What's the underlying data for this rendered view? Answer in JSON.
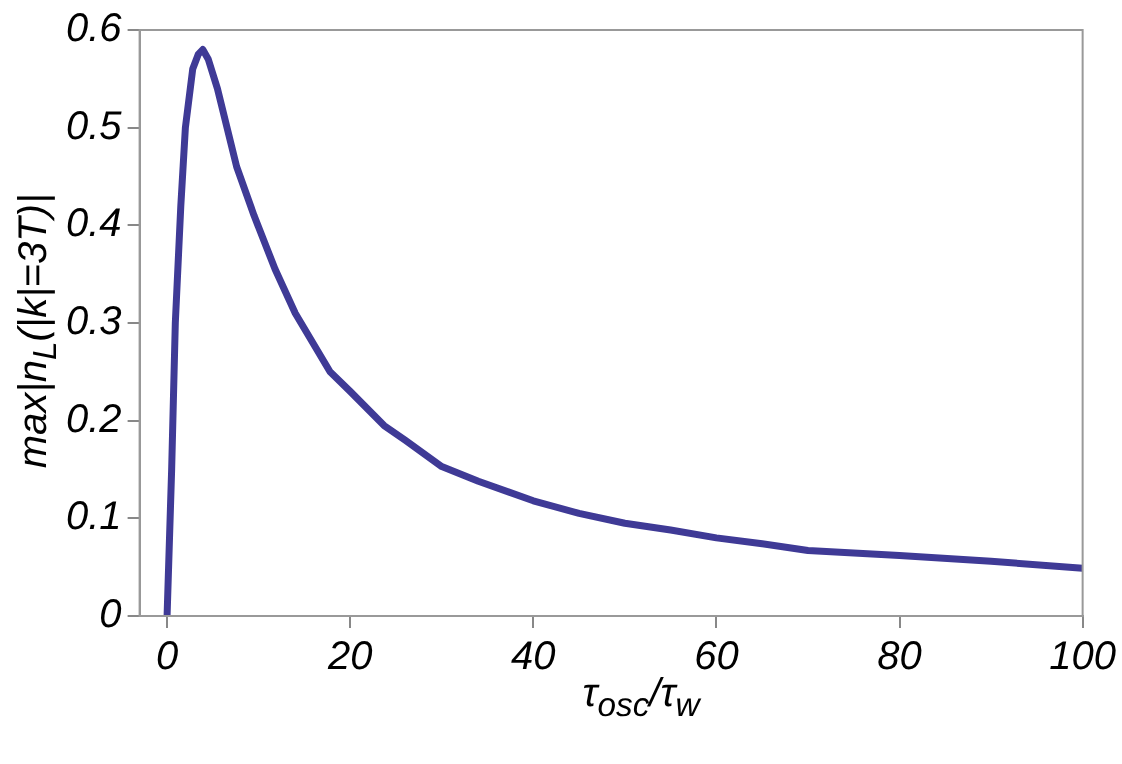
{
  "chart_data": {
    "type": "line",
    "xlabel": "τ$_{osc}$/τ$_{w}$",
    "ylabel": "max|n$_{L}$(|k|=3T)|",
    "series": [
      {
        "color": "#3f3a96",
        "x": [
          0,
          0.5,
          0.9,
          1.5,
          2,
          2.8,
          3.4,
          3.9,
          4.5,
          5.5,
          7.6,
          9.5,
          11.8,
          14,
          17.8,
          20,
          23.7,
          26,
          30,
          34,
          40,
          45,
          50,
          55,
          60,
          65,
          70,
          80,
          90,
          100
        ],
        "values": [
          0,
          0.15,
          0.3,
          0.42,
          0.5,
          0.56,
          0.575,
          0.58,
          0.57,
          0.54,
          0.46,
          0.41,
          0.355,
          0.31,
          0.25,
          0.23,
          0.195,
          0.18,
          0.153,
          0.138,
          0.118,
          0.105,
          0.095,
          0.088,
          0.08,
          0.074,
          0.067,
          0.062,
          0.056,
          0.049
        ]
      }
    ],
    "xlim": [
      -3,
      100
    ],
    "xticks": [
      0,
      20,
      40,
      60,
      80,
      100
    ],
    "ylim": [
      0,
      0.6
    ],
    "yticks": [
      0,
      0.1,
      0.2,
      0.3,
      0.4,
      0.5,
      0.6
    ],
    "grid": false,
    "legend": false,
    "marker": "none",
    "line_style": "solid"
  }
}
